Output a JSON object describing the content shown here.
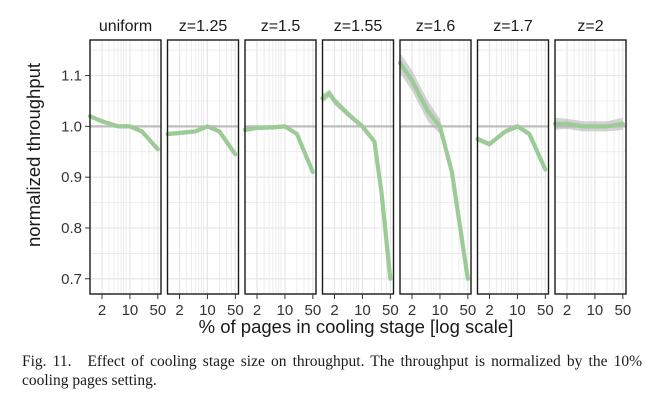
{
  "figure": {
    "y_axis_label": "normalized throughput",
    "x_axis_label": "% of pages in cooling stage [log scale]",
    "x_tick_labels": [
      "2",
      "10",
      "50"
    ],
    "y_tick_labels": [
      "0.7",
      "0.8",
      "0.9",
      "1.0",
      "1.1"
    ]
  },
  "caption": {
    "label": "Fig. 11.",
    "text": "Effect of cooling stage size on throughput. The throughput is normalized by the 10% cooling pages setting."
  },
  "colors": {
    "line": "#9ccb97",
    "band": "#b5b5b5",
    "reference_line": "#bdbdbd",
    "grid": "#e6e6e6",
    "panel_border": "#1a1a1a"
  },
  "chart_data": {
    "type": "line",
    "facet_by": "z",
    "xlabel": "% of pages in cooling stage [log scale]",
    "ylabel": "normalized throughput",
    "x_scale": "log",
    "x_ticks": [
      2,
      10,
      50
    ],
    "y_ticks": [
      0.7,
      0.8,
      0.9,
      1.0,
      1.1
    ],
    "xlim": [
      1,
      60
    ],
    "ylim": [
      0.67,
      1.17
    ],
    "reference_line_y": 1.0,
    "grid": true,
    "panels": [
      {
        "label": "uniform",
        "x": [
          1,
          2,
          5,
          10,
          20,
          50
        ],
        "y": [
          1.02,
          1.01,
          1.0,
          1.0,
          0.99,
          0.955
        ],
        "band": [
          0.004,
          0.004,
          0.004,
          0.004,
          0.004,
          0.004
        ]
      },
      {
        "label": "z=1.25",
        "x": [
          1,
          2,
          5,
          10,
          20,
          50
        ],
        "y": [
          0.985,
          0.987,
          0.99,
          1.0,
          0.99,
          0.945
        ],
        "band": [
          0.004,
          0.004,
          0.004,
          0.004,
          0.004,
          0.004
        ]
      },
      {
        "label": "z=1.5",
        "x": [
          1,
          2,
          5,
          10,
          20,
          50
        ],
        "y": [
          0.993,
          0.997,
          0.998,
          1.0,
          0.985,
          0.91
        ],
        "band": [
          0.004,
          0.004,
          0.004,
          0.004,
          0.004,
          0.004
        ]
      },
      {
        "label": "z=1.55",
        "x": [
          1,
          1.5,
          2,
          5,
          10,
          20,
          30,
          50
        ],
        "y": [
          1.055,
          1.065,
          1.05,
          1.02,
          1.0,
          0.97,
          0.87,
          0.7
        ],
        "band": [
          0.008,
          0.008,
          0.008,
          0.006,
          0.005,
          0.005,
          0.005,
          0.005
        ]
      },
      {
        "label": "z=1.6",
        "x": [
          1,
          2,
          5,
          10,
          20,
          50
        ],
        "y": [
          1.125,
          1.09,
          1.03,
          1.0,
          0.91,
          0.7
        ],
        "band": [
          0.02,
          0.02,
          0.02,
          0.015,
          0.008,
          0.005
        ]
      },
      {
        "label": "z=1.7",
        "x": [
          1,
          2,
          5,
          10,
          20,
          50
        ],
        "y": [
          0.975,
          0.965,
          0.99,
          1.0,
          0.985,
          0.915
        ],
        "band": [
          0.005,
          0.005,
          0.005,
          0.005,
          0.005,
          0.005
        ]
      },
      {
        "label": "z=2",
        "x": [
          1,
          2,
          5,
          10,
          20,
          50
        ],
        "y": [
          1.005,
          1.005,
          1.0,
          1.0,
          1.0,
          1.005
        ],
        "band": [
          0.012,
          0.01,
          0.01,
          0.01,
          0.01,
          0.012
        ]
      }
    ]
  }
}
